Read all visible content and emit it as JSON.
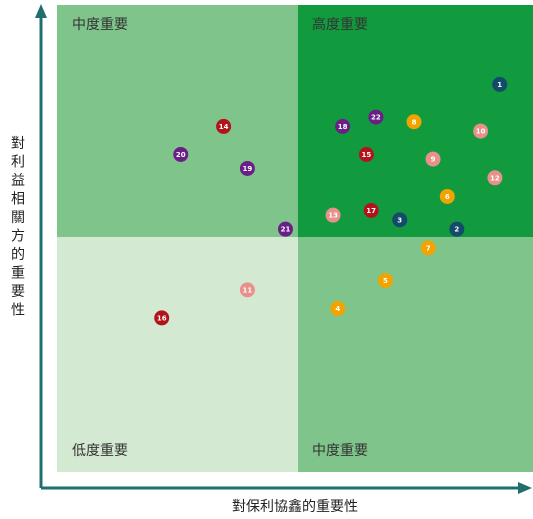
{
  "chart_data": {
    "type": "scatter",
    "title": "",
    "xlabel": "對保利協鑫的重要性",
    "ylabel": "對利益相關方的重要性",
    "xlim": [
      0,
      10
    ],
    "ylim": [
      0,
      10
    ],
    "grid": false,
    "quadrants": [
      {
        "id": "top-left",
        "label": "中度重要",
        "color": "#7fc48a"
      },
      {
        "id": "top-right",
        "label": "高度重要",
        "color": "#129b3e"
      },
      {
        "id": "bottom-left",
        "label": "低度重要",
        "color": "#d4e9d2"
      },
      {
        "id": "bottom-right",
        "label": "中度重要",
        "color": "#7fc48a"
      }
    ],
    "category_colors": {
      "navy": "#144a6a",
      "purple": "#6a1f86",
      "red": "#b3141c",
      "orange": "#f2a300",
      "pink": "#e8918a"
    },
    "points": [
      {
        "label": "1",
        "x": 9.3,
        "y": 8.3,
        "category": "navy"
      },
      {
        "label": "2",
        "x": 8.4,
        "y": 5.2,
        "category": "navy"
      },
      {
        "label": "3",
        "x": 7.2,
        "y": 5.4,
        "category": "navy"
      },
      {
        "label": "4",
        "x": 5.9,
        "y": 3.5,
        "category": "orange"
      },
      {
        "label": "5",
        "x": 6.9,
        "y": 4.1,
        "category": "orange"
      },
      {
        "label": "6",
        "x": 8.2,
        "y": 5.9,
        "category": "orange"
      },
      {
        "label": "7",
        "x": 7.8,
        "y": 4.8,
        "category": "orange"
      },
      {
        "label": "8",
        "x": 7.5,
        "y": 7.5,
        "category": "orange"
      },
      {
        "label": "9",
        "x": 7.9,
        "y": 6.7,
        "category": "pink"
      },
      {
        "label": "10",
        "x": 8.9,
        "y": 7.3,
        "category": "pink"
      },
      {
        "label": "11",
        "x": 4.0,
        "y": 3.9,
        "category": "pink"
      },
      {
        "label": "12",
        "x": 9.2,
        "y": 6.3,
        "category": "pink"
      },
      {
        "label": "13",
        "x": 5.8,
        "y": 5.5,
        "category": "pink"
      },
      {
        "label": "14",
        "x": 3.5,
        "y": 7.4,
        "category": "red"
      },
      {
        "label": "15",
        "x": 6.5,
        "y": 6.8,
        "category": "red"
      },
      {
        "label": "16",
        "x": 2.2,
        "y": 3.3,
        "category": "red"
      },
      {
        "label": "17",
        "x": 6.6,
        "y": 5.6,
        "category": "red"
      },
      {
        "label": "18",
        "x": 6.0,
        "y": 7.4,
        "category": "purple"
      },
      {
        "label": "19",
        "x": 4.0,
        "y": 6.5,
        "category": "purple"
      },
      {
        "label": "20",
        "x": 2.6,
        "y": 6.8,
        "category": "purple"
      },
      {
        "label": "21",
        "x": 4.8,
        "y": 5.2,
        "category": "purple"
      },
      {
        "label": "22",
        "x": 6.7,
        "y": 7.6,
        "category": "purple"
      }
    ]
  }
}
